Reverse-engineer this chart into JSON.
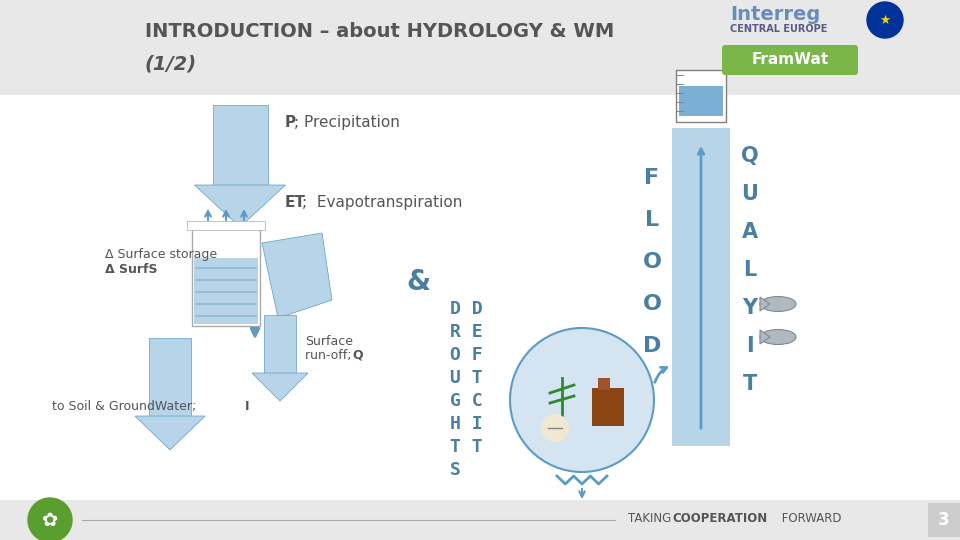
{
  "bg_color": "#e8e8e8",
  "content_bg": "#ffffff",
  "title_line1": "INTRODUCTION – about HYDROLOGY & WM",
  "title_line2": "(1/2)",
  "title_color": "#555555",
  "title_fontsize": 14,
  "arrow_blue": "#7bafd4",
  "arrow_blue_dark": "#5b9cc4",
  "arrow_blue_light": "#b8d4e8",
  "label_P": "P",
  "label_P_semi": "; Precipitation",
  "label_ET": "ET",
  "label_ET_semi": ";  Evapotranspiration",
  "label_delta_surface": "Δ Surface storage",
  "label_delta_surfs": "Δ SurfS",
  "label_Q": "Q",
  "label_I": "I",
  "drought_color": "#4a7fa0",
  "flood_color": "#4a7fa0",
  "ampersand_color": "#4a7fa0",
  "bottom_text_color": "#555555",
  "page_num": "3",
  "framwat_bg": "#7ab648",
  "framwat_text": "FramWat"
}
